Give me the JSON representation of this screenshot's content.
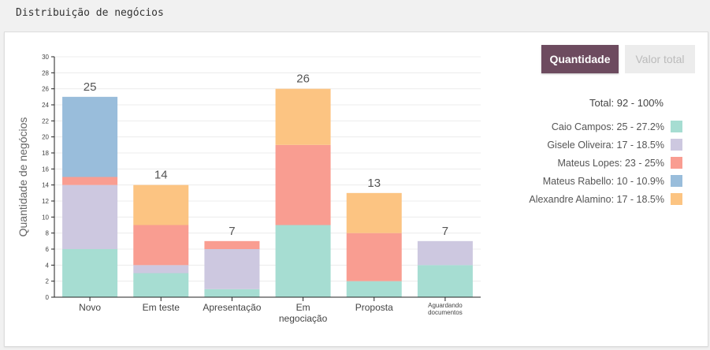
{
  "header": {
    "title": "Distribuição de negócios"
  },
  "toolbar": {
    "quantity_label": "Quantidade",
    "value_label": "Valor total"
  },
  "legend": {
    "total": "Total: 92 - 100%",
    "items": [
      {
        "label": "Caio Campos: 25 - 27.2%",
        "color": "#a6ddd2"
      },
      {
        "label": "Gisele Oliveira: 17 - 18.5%",
        "color": "#cdc8e0"
      },
      {
        "label": "Mateus Lopes: 23 - 25%",
        "color": "#f99d91"
      },
      {
        "label": "Mateus Rabello: 10 - 10.9%",
        "color": "#99bddb"
      },
      {
        "label": "Alexandre Alamino: 17 - 18.5%",
        "color": "#fcc482"
      }
    ]
  },
  "chart_data": {
    "type": "bar",
    "stacked": true,
    "ylabel": "Quantidade de negócios",
    "xlabel": "",
    "ylim": [
      0,
      30
    ],
    "yticks": [
      0,
      2,
      4,
      6,
      8,
      10,
      12,
      14,
      16,
      18,
      20,
      22,
      24,
      26,
      28,
      30
    ],
    "grid": true,
    "legend_position": "right",
    "categories": [
      "Novo",
      "Em teste",
      "Apresentação",
      "Em negociação",
      "Proposta",
      "Aguardando documentos"
    ],
    "series": [
      {
        "name": "Caio Campos",
        "color": "#a6ddd2",
        "values": [
          6,
          3,
          1,
          9,
          2,
          4
        ]
      },
      {
        "name": "Gisele Oliveira",
        "color": "#cdc8e0",
        "values": [
          8,
          1,
          5,
          0,
          0,
          3
        ]
      },
      {
        "name": "Mateus Lopes",
        "color": "#f99d91",
        "values": [
          1,
          5,
          1,
          10,
          6,
          0
        ]
      },
      {
        "name": "Mateus Rabello",
        "color": "#99bddb",
        "values": [
          10,
          0,
          0,
          0,
          0,
          0
        ]
      },
      {
        "name": "Alexandre Alamino",
        "color": "#fcc482",
        "values": [
          0,
          5,
          0,
          7,
          5,
          0
        ]
      }
    ],
    "totals": [
      25,
      14,
      7,
      26,
      13,
      7
    ]
  }
}
